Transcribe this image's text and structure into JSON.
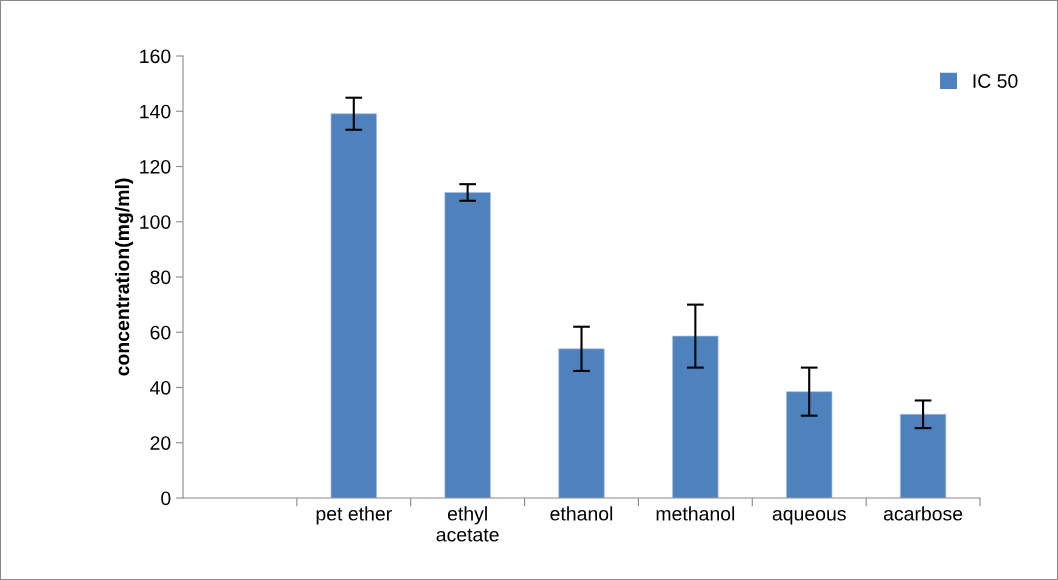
{
  "chart_data": {
    "type": "bar",
    "ylabel": "concentration(mg/ml)",
    "categories": [
      null,
      "pet ether",
      "ethyl\nacetate",
      "ethanol",
      "methanol",
      "aqueous",
      "acarbose"
    ],
    "series": [
      {
        "name": "IC 50",
        "color": "#4f81bd",
        "values": [
          null,
          139.1,
          110.6,
          54.0,
          58.6,
          38.5,
          30.3
        ],
        "errors": [
          null,
          5.8,
          3.0,
          8.0,
          11.4,
          8.7,
          5.0
        ]
      }
    ],
    "ylim": [
      0,
      160
    ],
    "yticks": [
      0,
      20,
      40,
      60,
      80,
      100,
      120,
      140,
      160
    ],
    "grid": false,
    "legend": "top right"
  }
}
